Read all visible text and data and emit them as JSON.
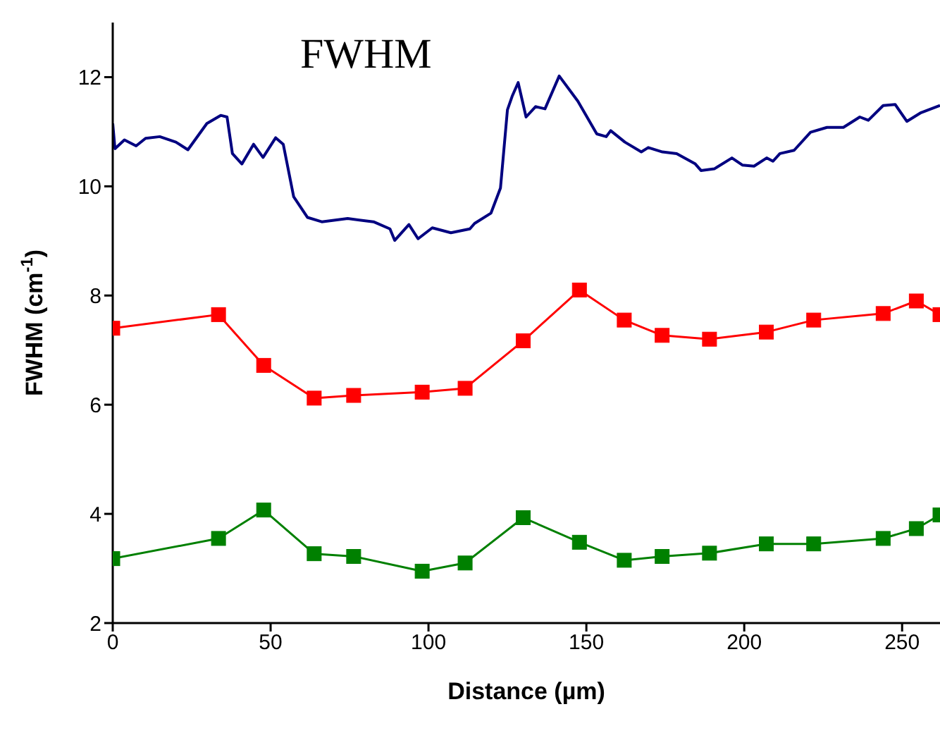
{
  "chart_data": {
    "type": "line",
    "title": "FWHM",
    "xlabel": "Distance (µm)",
    "ylabel": "FWHM (cm$^{-1}$)",
    "xlim": [
      0,
      262
    ],
    "ylim": [
      2,
      13
    ],
    "xticks": [
      0,
      50,
      100,
      150,
      200,
      250
    ],
    "yticks": [
      2,
      4,
      6,
      8,
      10,
      12
    ],
    "grid": false,
    "legend": false,
    "line_style": "solid",
    "series": [
      {
        "color": "#000080",
        "marker": "none",
        "x": [
          0,
          0.7,
          3.7,
          7.4,
          10.4,
          14.9,
          20,
          23.8,
          29.8,
          34.2,
          36.2,
          37.9,
          40.9,
          44.6,
          47.6,
          51.6,
          54,
          57.3,
          61.7,
          66.2,
          74.4,
          82.6,
          87.8,
          89.3,
          93.8,
          96.7,
          101.2,
          107.1,
          113.1,
          114.6,
          119.8,
          122.8,
          125,
          126.5,
          128.4,
          130.9,
          133.9,
          136.9,
          141.4,
          147.3,
          153.3,
          156.3,
          157.7,
          162.2,
          167.4,
          169.6,
          174.1,
          178.6,
          184.5,
          186.3,
          190.5,
          196.1,
          199.4,
          203.1,
          207.1,
          209.1,
          211.3,
          215.8,
          221,
          226.2,
          231.4,
          236.6,
          239.3,
          244,
          247.8,
          251.5,
          256,
          262
        ],
        "values": [
          11.15,
          10.69,
          10.85,
          10.74,
          10.88,
          10.91,
          10.81,
          10.67,
          11.15,
          11.3,
          11.27,
          10.6,
          10.41,
          10.77,
          10.53,
          10.89,
          10.77,
          9.81,
          9.43,
          9.35,
          9.41,
          9.35,
          9.22,
          9.01,
          9.3,
          9.04,
          9.24,
          9.15,
          9.22,
          9.32,
          9.51,
          9.97,
          11.4,
          11.65,
          11.9,
          11.27,
          11.46,
          11.42,
          12.02,
          11.56,
          10.96,
          10.91,
          11.02,
          10.81,
          10.63,
          10.71,
          10.63,
          10.6,
          10.41,
          10.29,
          10.32,
          10.52,
          10.39,
          10.37,
          10.52,
          10.46,
          10.6,
          10.66,
          10.99,
          11.08,
          11.08,
          11.27,
          11.21,
          11.48,
          11.5,
          11.19,
          11.35,
          11.48
        ]
      },
      {
        "color": "#ff0000",
        "marker": "square",
        "x": [
          0,
          33.5,
          47.8,
          63.8,
          76.3,
          98,
          111.6,
          130,
          147.8,
          162,
          174,
          189,
          207,
          222,
          244,
          254.5,
          262
        ],
        "values": [
          7.4,
          7.65,
          6.72,
          6.12,
          6.17,
          6.23,
          6.3,
          7.17,
          8.1,
          7.55,
          7.27,
          7.2,
          7.33,
          7.55,
          7.67,
          7.9,
          7.65
        ]
      },
      {
        "color": "#008000",
        "marker": "square",
        "x": [
          0,
          33.5,
          47.8,
          63.8,
          76.3,
          98,
          111.6,
          130,
          147.8,
          162,
          174,
          189,
          207,
          222,
          244,
          254.5,
          262
        ],
        "values": [
          3.18,
          3.55,
          4.07,
          3.27,
          3.22,
          2.95,
          3.1,
          3.93,
          3.48,
          3.15,
          3.22,
          3.28,
          3.45,
          3.45,
          3.55,
          3.73,
          3.98
        ]
      }
    ]
  }
}
